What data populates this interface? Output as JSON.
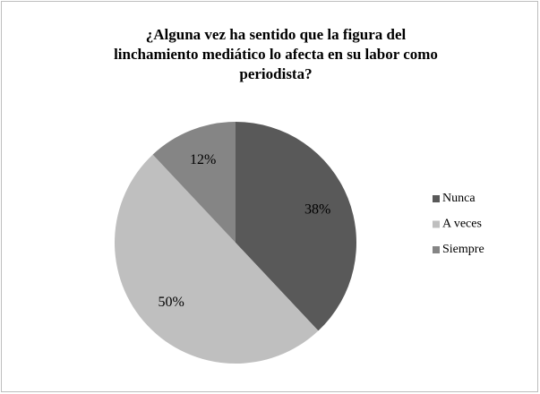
{
  "chart_data": {
    "type": "pie",
    "title": [
      "¿Alguna vez ha sentido que la figura del",
      "linchamiento  mediático lo afecta en su labor como",
      "periodista?"
    ],
    "categories": [
      "Nunca",
      "A veces",
      "Siempre"
    ],
    "values": [
      38,
      50,
      12
    ],
    "value_labels": [
      "38%",
      "50%",
      "12%"
    ],
    "colors": [
      "#595959",
      "#bfbfbf",
      "#858585"
    ],
    "legend": "right"
  }
}
